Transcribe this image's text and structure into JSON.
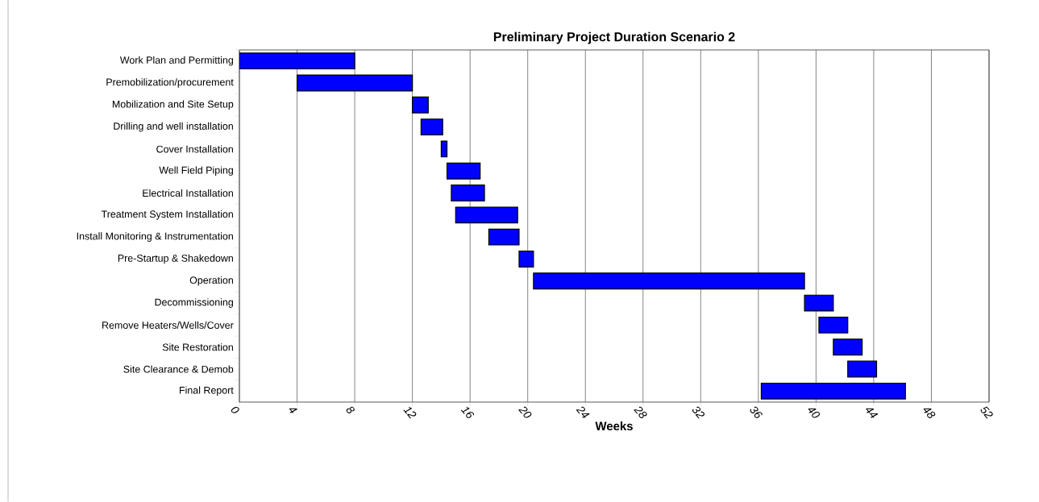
{
  "chart_data": {
    "type": "bar",
    "orientation": "horizontal",
    "title": "Preliminary Project Duration Scenario 2",
    "xlabel": "Weeks",
    "categories": [
      "Work Plan and Permitting",
      "Premobilization/procurement",
      "Mobilization and Site Setup",
      "Drilling and well installation",
      "Cover Installation",
      "Well Field Piping",
      "Electrical Installation",
      "Treatment System Installation",
      "Install Monitoring & Instrumentation",
      "Pre-Startup & Shakedown",
      "Operation",
      "Decommissioning",
      "Remove Heaters/Wells/Cover",
      "Site Restoration",
      "Site Clearance & Demob",
      "Final Report"
    ],
    "base": [
      0,
      4,
      12,
      12.6,
      14,
      14.4,
      14.7,
      15,
      17.3,
      19.4,
      20.4,
      39.2,
      40.2,
      41.2,
      42.2,
      36.2
    ],
    "values": [
      8,
      8,
      1.1,
      1.5,
      0.4,
      2.3,
      2.3,
      4.3,
      2.1,
      1.0,
      18.8,
      2,
      2,
      2,
      2,
      10
    ],
    "color": "#0000ff",
    "xlim": [
      0,
      52
    ],
    "xticks": [
      0,
      4,
      8,
      12,
      16,
      20,
      24,
      28,
      32,
      36,
      40,
      44,
      48,
      52
    ],
    "grid": "x"
  }
}
